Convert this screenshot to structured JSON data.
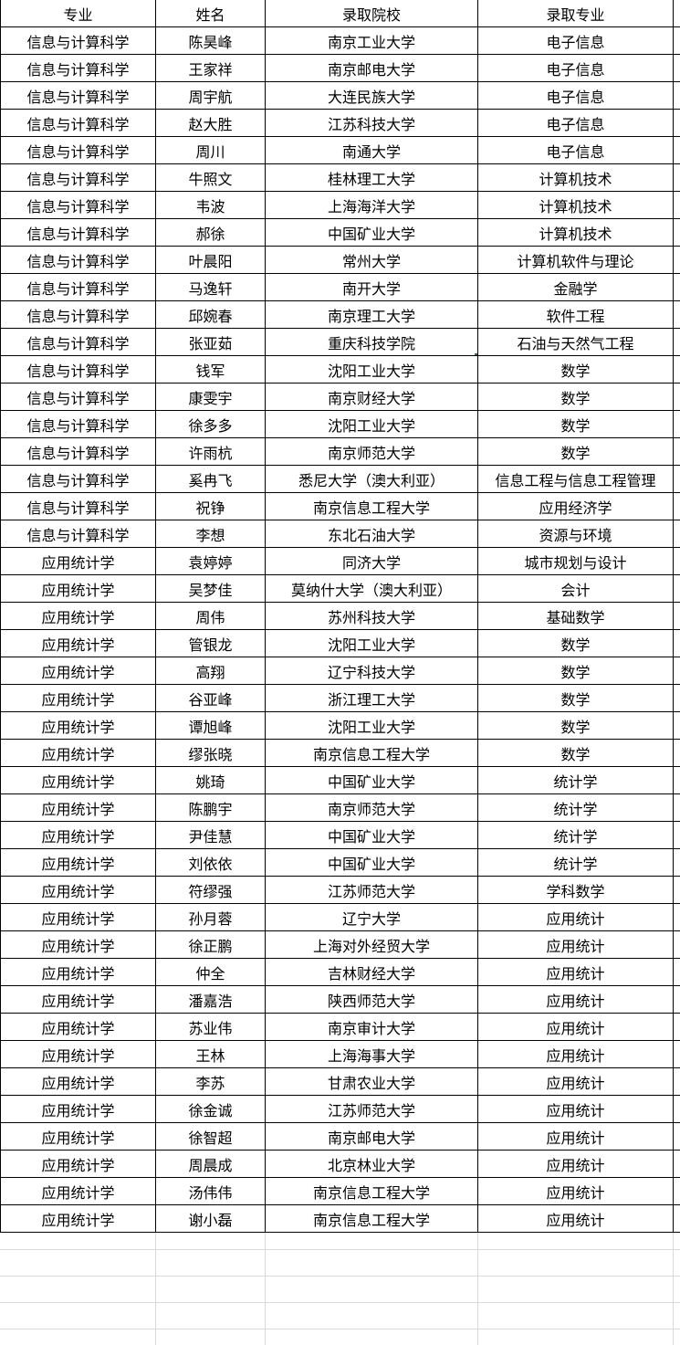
{
  "table": {
    "header": [
      "专业",
      "姓名",
      "录取院校",
      "录取专业"
    ],
    "rows": [
      [
        "信息与计算科学",
        "陈昊峰",
        "南京工业大学",
        "电子信息"
      ],
      [
        "信息与计算科学",
        "王家祥",
        "南京邮电大学",
        "电子信息"
      ],
      [
        "信息与计算科学",
        "周宇航",
        "大连民族大学",
        "电子信息"
      ],
      [
        "信息与计算科学",
        "赵大胜",
        "江苏科技大学",
        "电子信息"
      ],
      [
        "信息与计算科学",
        "周川",
        "南通大学",
        "电子信息"
      ],
      [
        "信息与计算科学",
        "牛照文",
        "桂林理工大学",
        "计算机技术"
      ],
      [
        "信息与计算科学",
        "韦波",
        "上海海洋大学",
        "计算机技术"
      ],
      [
        "信息与计算科学",
        "郝徐",
        "中国矿业大学",
        "计算机技术"
      ],
      [
        "信息与计算科学",
        "叶晨阳",
        "常州大学",
        "计算机软件与理论"
      ],
      [
        "信息与计算科学",
        "马逸轩",
        "南开大学",
        "金融学"
      ],
      [
        "信息与计算科学",
        "邱婉春",
        "南京理工大学",
        "软件工程"
      ],
      [
        "信息与计算科学",
        "张亚茹",
        "重庆科技学院",
        "石油与天然气工程"
      ],
      [
        "信息与计算科学",
        "钱军",
        "沈阳工业大学",
        "数学"
      ],
      [
        "信息与计算科学",
        "康雯宇",
        "南京财经大学",
        "数学"
      ],
      [
        "信息与计算科学",
        "徐多多",
        "沈阳工业大学",
        "数学"
      ],
      [
        "信息与计算科学",
        "许雨杭",
        "南京师范大学",
        "数学"
      ],
      [
        "信息与计算科学",
        "奚冉飞",
        "悉尼大学（澳大利亚）",
        "信息工程与信息工程管理"
      ],
      [
        "信息与计算科学",
        "祝铮",
        "南京信息工程大学",
        "应用经济学"
      ],
      [
        "信息与计算科学",
        "李想",
        "东北石油大学",
        "资源与环境"
      ],
      [
        "应用统计学",
        "袁婷婷",
        "同济大学",
        "城市规划与设计"
      ],
      [
        "应用统计学",
        "吴梦佳",
        "莫纳什大学（澳大利亚）",
        "会计"
      ],
      [
        "应用统计学",
        "周伟",
        "苏州科技大学",
        "基础数学"
      ],
      [
        "应用统计学",
        "管银龙",
        "沈阳工业大学",
        "数学"
      ],
      [
        "应用统计学",
        "高翔",
        "辽宁科技大学",
        "数学"
      ],
      [
        "应用统计学",
        "谷亚峰",
        "浙江理工大学",
        "数学"
      ],
      [
        "应用统计学",
        "谭旭峰",
        "沈阳工业大学",
        "数学"
      ],
      [
        "应用统计学",
        "缪张晓",
        "南京信息工程大学",
        "数学"
      ],
      [
        "应用统计学",
        "姚琦",
        "中国矿业大学",
        "统计学"
      ],
      [
        "应用统计学",
        "陈鹏宇",
        "南京师范大学",
        "统计学"
      ],
      [
        "应用统计学",
        "尹佳慧",
        "中国矿业大学",
        "统计学"
      ],
      [
        "应用统计学",
        "刘依依",
        "中国矿业大学",
        "统计学"
      ],
      [
        "应用统计学",
        "符缪强",
        "江苏师范大学",
        "学科数学"
      ],
      [
        "应用统计学",
        "孙月蓉",
        "辽宁大学",
        "应用统计"
      ],
      [
        "应用统计学",
        "徐正鹏",
        "上海对外经贸大学",
        "应用统计"
      ],
      [
        "应用统计学",
        "仲全",
        "吉林财经大学",
        "应用统计"
      ],
      [
        "应用统计学",
        "潘嘉浩",
        "陕西师范大学",
        "应用统计"
      ],
      [
        "应用统计学",
        "苏业伟",
        "南京审计大学",
        "应用统计"
      ],
      [
        "应用统计学",
        "王林",
        "上海海事大学",
        "应用统计"
      ],
      [
        "应用统计学",
        "李苏",
        "甘肃农业大学",
        "应用统计"
      ],
      [
        "应用统计学",
        "徐金诚",
        "江苏师范大学",
        "应用统计"
      ],
      [
        "应用统计学",
        "徐智超",
        "南京邮电大学",
        "应用统计"
      ],
      [
        "应用统计学",
        "周晨成",
        "北京林业大学",
        "应用统计"
      ],
      [
        "应用统计学",
        "汤伟伟",
        "南京信息工程大学",
        "应用统计"
      ],
      [
        "应用统计学",
        "谢小磊",
        "南京信息工程大学",
        "应用统计"
      ]
    ]
  },
  "selection": {
    "row_index": 11,
    "col_index": 2,
    "selected_value": "重庆科技学院"
  },
  "colors": {
    "cell_border": "#000000",
    "empty_gridline": "#d9d9d9",
    "selection": "#217346",
    "text": "#000000",
    "background": "#ffffff"
  }
}
